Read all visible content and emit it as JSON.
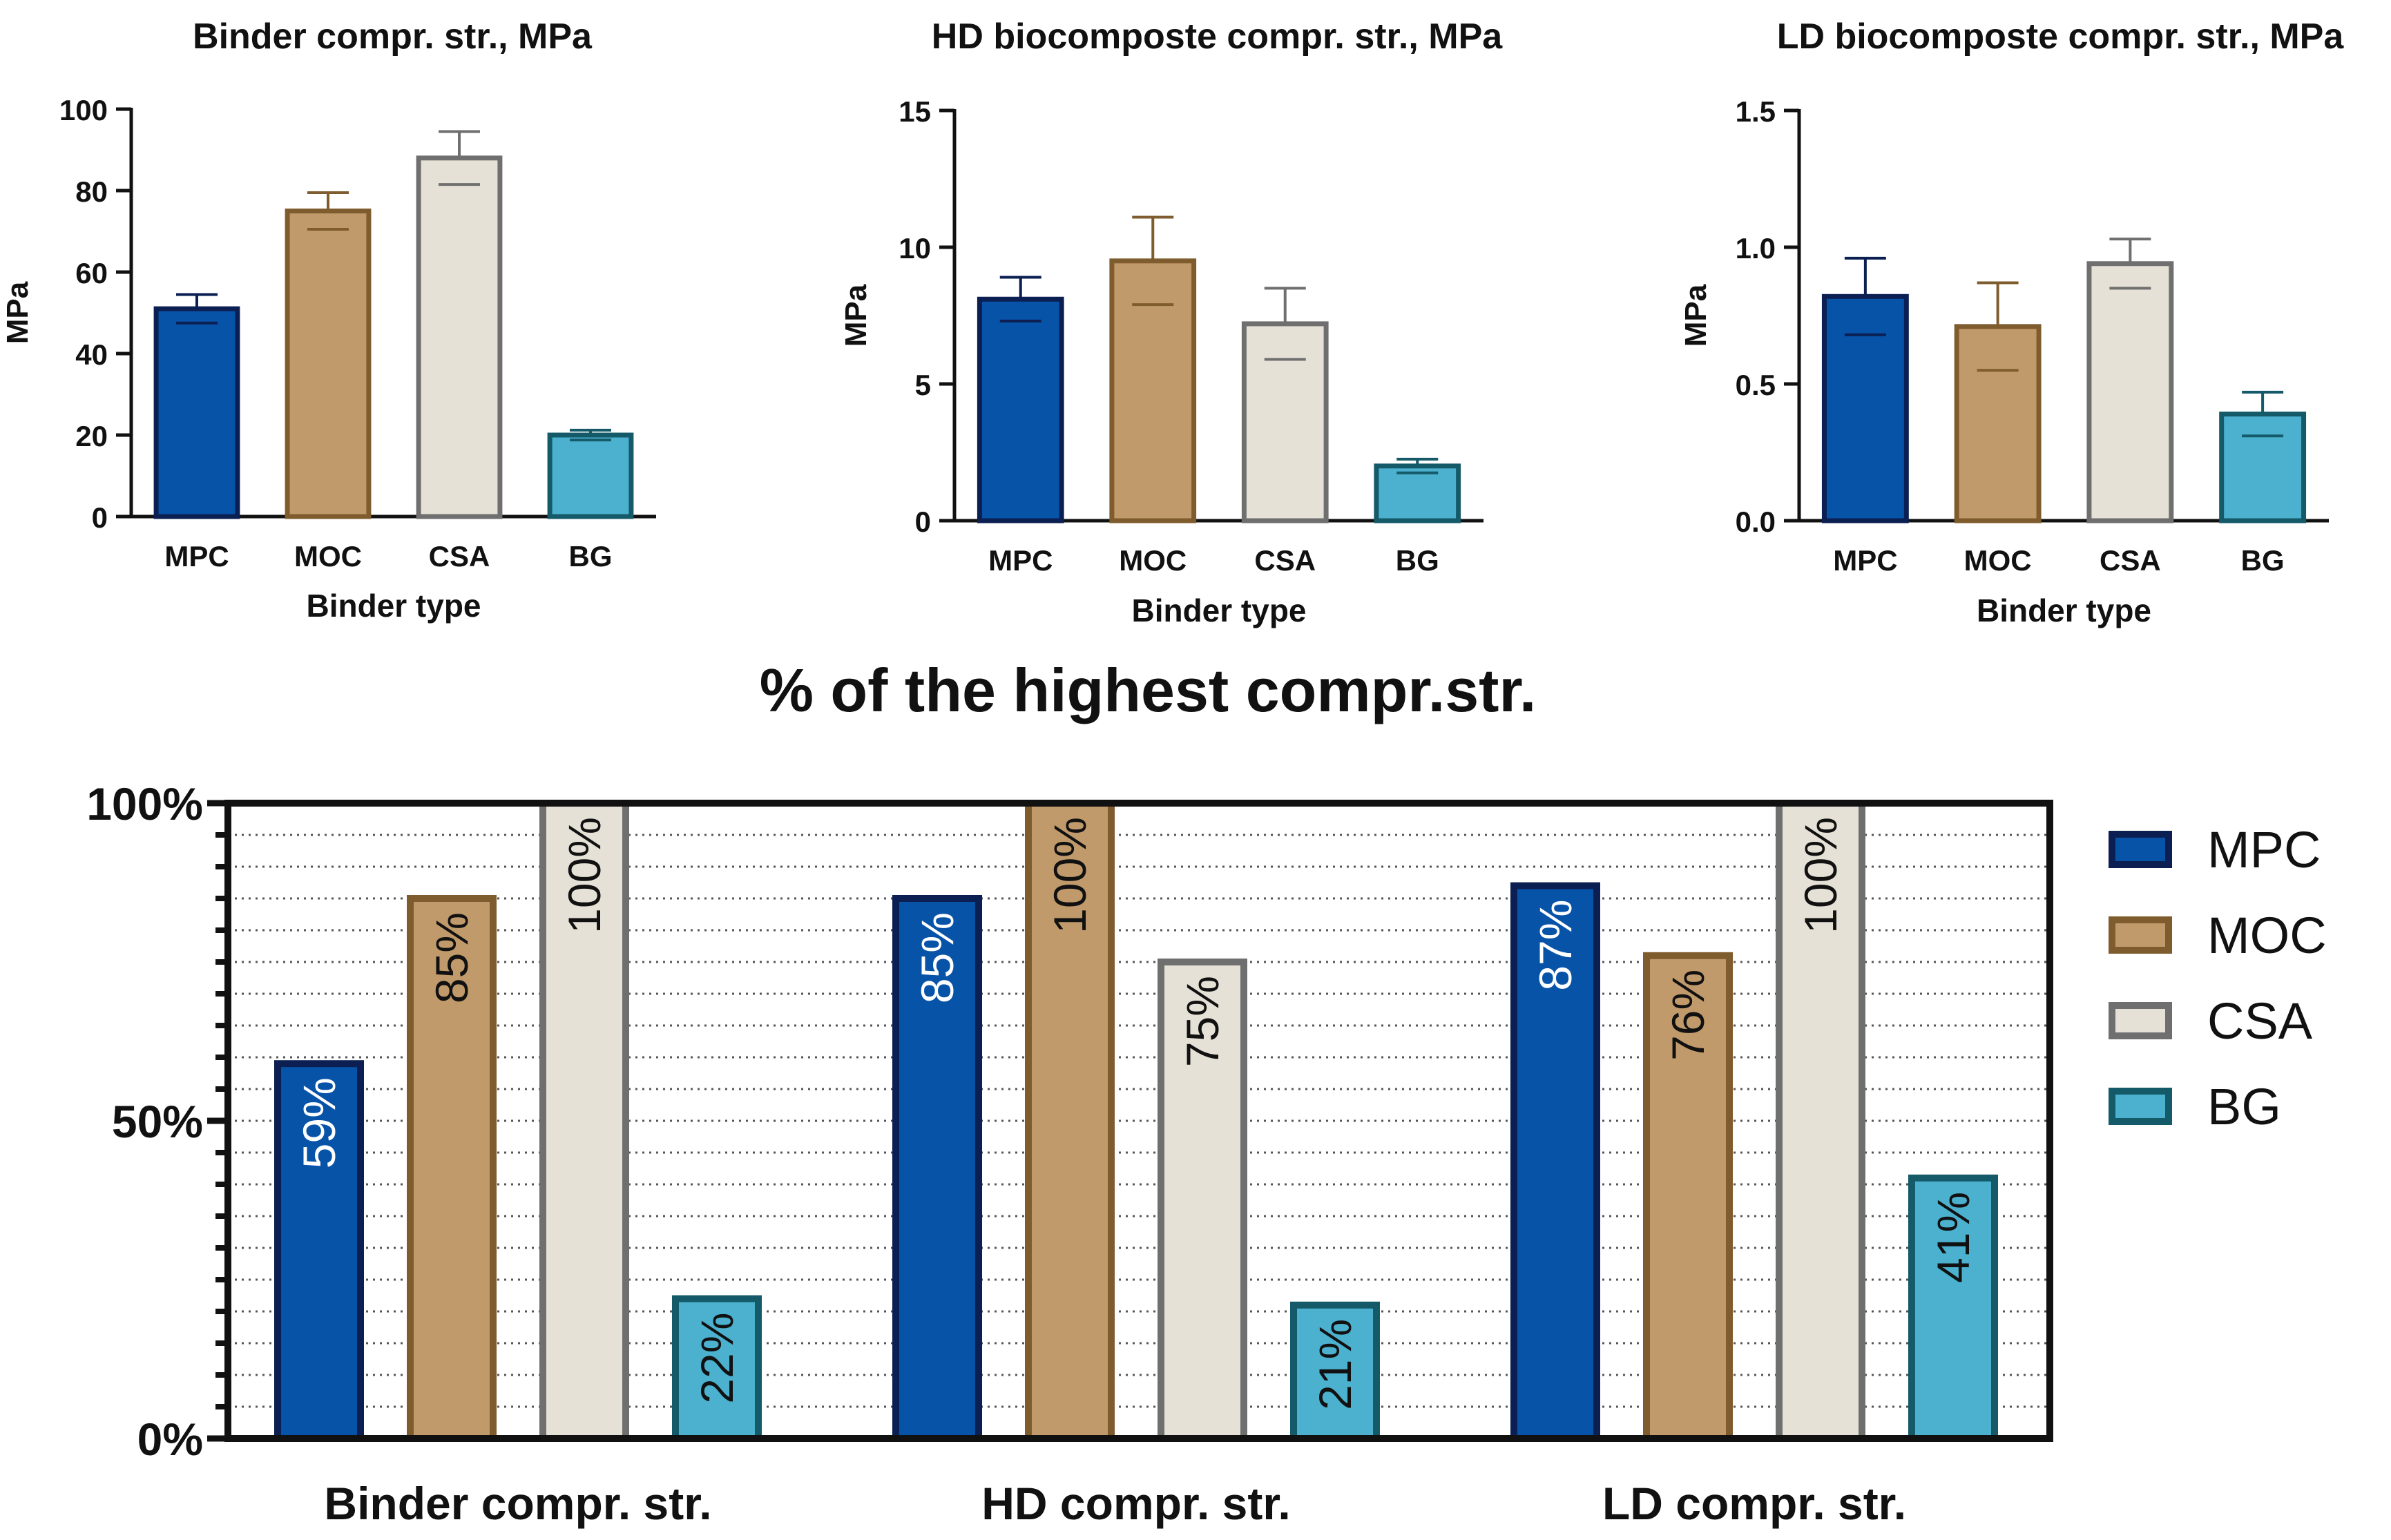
{
  "colors": {
    "MPC": {
      "fill": "#0753a8",
      "stroke": "#0b1f52"
    },
    "MOC": {
      "fill": "#c19a6b",
      "stroke": "#7f5c2e"
    },
    "CSA": {
      "fill": "#e6e1d6",
      "stroke": "#6f6f6f"
    },
    "BG": {
      "fill": "#4bb1cf",
      "stroke": "#155a68"
    }
  },
  "chart_data": [
    {
      "type": "bar",
      "title": "Binder compr. str., MPa",
      "xlabel": "Binder type",
      "ylabel": "MPa",
      "categories": [
        "MPC",
        "MOC",
        "CSA",
        "BG"
      ],
      "values": [
        51,
        75,
        88,
        20
      ],
      "errors": [
        3.5,
        4.5,
        6.5,
        1.2
      ],
      "ylim": [
        0,
        100
      ],
      "yticks": [
        0,
        20,
        40,
        60,
        80,
        100
      ],
      "ytick_labels": [
        "0",
        "20",
        "40",
        "60",
        "80",
        "100"
      ]
    },
    {
      "type": "bar",
      "title": "HD biocomposte compr. str., MPa",
      "xlabel": "Binder type",
      "ylabel": "MPa",
      "categories": [
        "MPC",
        "MOC",
        "CSA",
        "BG"
      ],
      "values": [
        8.1,
        9.5,
        7.2,
        2.0
      ],
      "errors": [
        0.8,
        1.6,
        1.3,
        0.25
      ],
      "ylim": [
        0,
        15
      ],
      "yticks": [
        0,
        5,
        10,
        15
      ],
      "ytick_labels": [
        "0",
        "5",
        "10",
        "15"
      ]
    },
    {
      "type": "bar",
      "title": "LD biocomposte compr. str., MPa",
      "xlabel": "Binder type",
      "ylabel": "MPa",
      "categories": [
        "MPC",
        "MOC",
        "CSA",
        "BG"
      ],
      "values": [
        0.82,
        0.71,
        0.94,
        0.39
      ],
      "errors": [
        0.14,
        0.16,
        0.09,
        0.08
      ],
      "ylim": [
        0,
        1.5
      ],
      "yticks": [
        0,
        0.5,
        1.0,
        1.5
      ],
      "ytick_labels": [
        "0.0",
        "0.5",
        "1.0",
        "1.5"
      ]
    },
    {
      "type": "bar",
      "title": "% of the highest compr.str.",
      "categories": [
        "Binder compr. str.",
        "HD compr. str.",
        "LD compr. str."
      ],
      "series": [
        {
          "name": "MPC",
          "values": [
            59,
            85,
            87
          ],
          "labels": [
            "59%",
            "85%",
            "87%"
          ]
        },
        {
          "name": "MOC",
          "values": [
            85,
            100,
            76
          ],
          "labels": [
            "85%",
            "100%",
            "76%"
          ]
        },
        {
          "name": "CSA",
          "values": [
            100,
            75,
            100
          ],
          "labels": [
            "100%",
            "75%",
            "100%"
          ]
        },
        {
          "name": "BG",
          "values": [
            22,
            21,
            41
          ],
          "labels": [
            "22%",
            "21%",
            "41%"
          ]
        }
      ],
      "ylim": [
        0,
        100
      ],
      "yticks": [
        0,
        50,
        100
      ],
      "ytick_labels": [
        "0%",
        "50%",
        "100%"
      ],
      "grid": true,
      "legend": "right"
    }
  ]
}
